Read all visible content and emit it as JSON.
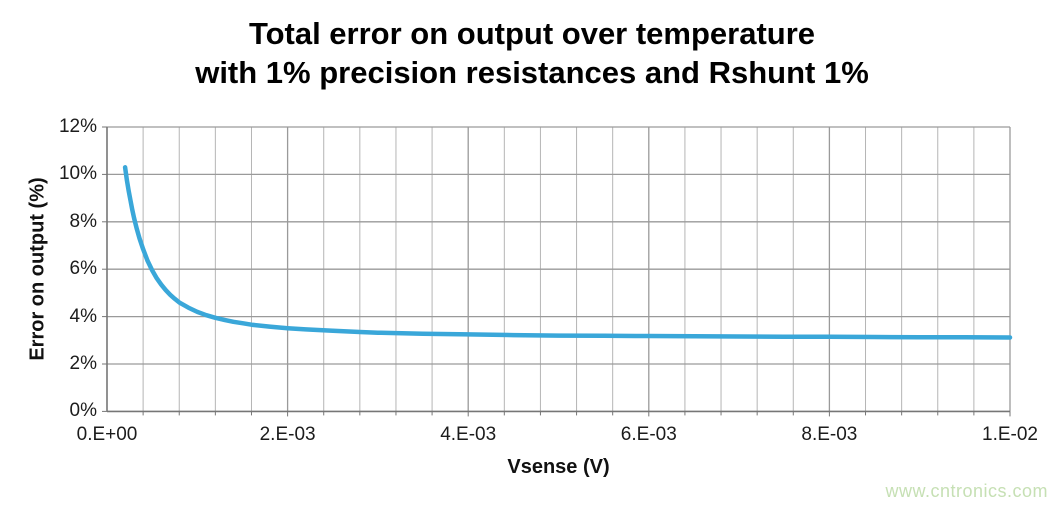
{
  "title": {
    "line1": "Total error on output over temperature",
    "line2": "with 1% precision resistances and Rshunt 1%"
  },
  "watermark": "www.cntronics.com",
  "chart_data": {
    "type": "line",
    "title": "Total error on output over temperature with 1% precision resistances and Rshunt 1%",
    "xlabel": "Vsense (V)",
    "ylabel": "Error on output (%)",
    "xlim": [
      0,
      0.01
    ],
    "ylim": [
      0,
      12
    ],
    "x_major_unit": 0.002,
    "x_minor_unit": 0.0004,
    "y_major_unit": 2,
    "x_ticks": [
      {
        "value": 0,
        "label": "0.E+00"
      },
      {
        "value": 0.002,
        "label": "2.E-03"
      },
      {
        "value": 0.004,
        "label": "4.E-03"
      },
      {
        "value": 0.006,
        "label": "6.E-03"
      },
      {
        "value": 0.008,
        "label": "8.E-03"
      },
      {
        "value": 0.01,
        "label": "1.E-02"
      }
    ],
    "y_ticks": [
      {
        "value": 0,
        "label": "0%"
      },
      {
        "value": 2,
        "label": "2%"
      },
      {
        "value": 4,
        "label": "4%"
      },
      {
        "value": 6,
        "label": "6%"
      },
      {
        "value": 8,
        "label": "8%"
      },
      {
        "value": 10,
        "label": "10%"
      },
      {
        "value": 12,
        "label": "12%"
      }
    ],
    "grid": {
      "vertical": "major+minor",
      "horizontal": "major"
    },
    "legend": "none",
    "series": [
      {
        "name": "Total error on output",
        "color": "#3aa7d9",
        "points": [
          [
            0.0002,
            10.3
          ],
          [
            0.00022,
            9.75
          ],
          [
            0.00024,
            9.3
          ],
          [
            0.00026,
            8.9
          ],
          [
            0.00028,
            8.5
          ],
          [
            0.0003,
            8.15
          ],
          [
            0.00033,
            7.7
          ],
          [
            0.00036,
            7.3
          ],
          [
            0.0004,
            6.85
          ],
          [
            0.00045,
            6.35
          ],
          [
            0.0005,
            5.95
          ],
          [
            0.00055,
            5.62
          ],
          [
            0.0006,
            5.35
          ],
          [
            0.00065,
            5.12
          ],
          [
            0.0007,
            4.92
          ],
          [
            0.00075,
            4.75
          ],
          [
            0.0008,
            4.6
          ],
          [
            0.0009,
            4.38
          ],
          [
            0.001,
            4.2
          ],
          [
            0.0011,
            4.06
          ],
          [
            0.0012,
            3.95
          ],
          [
            0.0013,
            3.86
          ],
          [
            0.0014,
            3.78
          ],
          [
            0.0015,
            3.72
          ],
          [
            0.0016,
            3.66
          ],
          [
            0.0018,
            3.58
          ],
          [
            0.002,
            3.51
          ],
          [
            0.0022,
            3.46
          ],
          [
            0.0025,
            3.4
          ],
          [
            0.0028,
            3.35
          ],
          [
            0.003,
            3.32
          ],
          [
            0.0035,
            3.28
          ],
          [
            0.004,
            3.25
          ],
          [
            0.0045,
            3.22
          ],
          [
            0.005,
            3.2
          ],
          [
            0.0055,
            3.19
          ],
          [
            0.006,
            3.18
          ],
          [
            0.0065,
            3.17
          ],
          [
            0.007,
            3.16
          ],
          [
            0.0075,
            3.15
          ],
          [
            0.008,
            3.15
          ],
          [
            0.0085,
            3.14
          ],
          [
            0.009,
            3.13
          ],
          [
            0.0095,
            3.13
          ],
          [
            0.01,
            3.12
          ]
        ]
      }
    ],
    "colors": {
      "line": "#3aa7d9",
      "axis": "#767676",
      "major_grid": "#9a9a9a",
      "minor_grid": "#b5b5b5",
      "tick_text": "#1c1c1c",
      "title_text": "#000000",
      "watermark": "#c6e0b4",
      "background": "#ffffff"
    }
  }
}
